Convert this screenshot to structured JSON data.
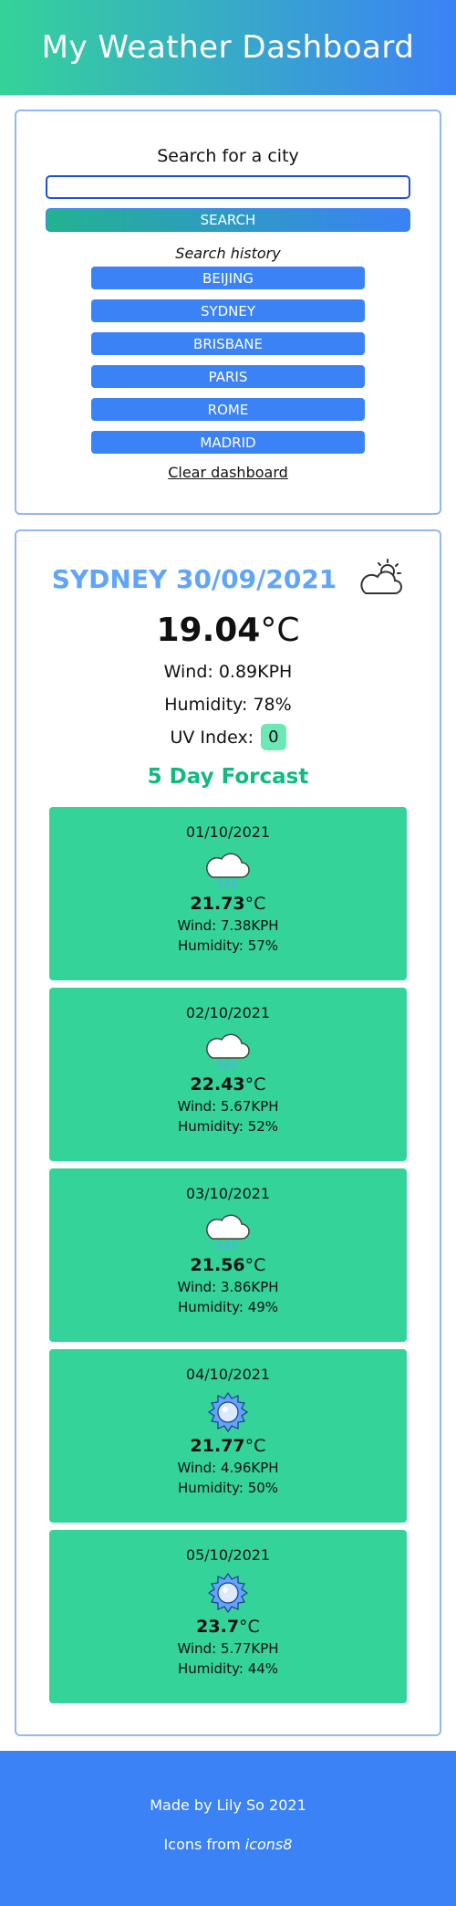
{
  "header": {
    "title": "My Weather Dashboard"
  },
  "search": {
    "title": "Search for a city",
    "input_value": "",
    "placeholder": "",
    "button_label": "SEARCH"
  },
  "history": {
    "title": "Search history",
    "items": [
      "BEIJING",
      "SYDNEY",
      "BRISBANE",
      "PARIS",
      "ROME",
      "MADRID"
    ],
    "clear_label": "Clear dashboard"
  },
  "current": {
    "title": "SYDNEY 30/09/2021",
    "icon": "partly-cloudy-icon",
    "temp_value": "19.04",
    "temp_unit": "°C",
    "wind": "Wind: 0.89KPH",
    "humidity": "Humidity: 78%",
    "uv_label": "UV Index:",
    "uv_value": "0"
  },
  "forecast": {
    "title": "5 Day Forcast",
    "days": [
      {
        "date": "01/10/2021",
        "icon": "rain-cloud-icon",
        "temp": "21.73",
        "unit": "°C",
        "wind": "Wind: 7.38KPH",
        "humidity": "Humidity: 57%"
      },
      {
        "date": "02/10/2021",
        "icon": "rain-cloud-icon",
        "temp": "22.43",
        "unit": "°C",
        "wind": "Wind: 5.67KPH",
        "humidity": "Humidity: 52%"
      },
      {
        "date": "03/10/2021",
        "icon": "rain-cloud-icon",
        "temp": "21.56",
        "unit": "°C",
        "wind": "Wind: 3.86KPH",
        "humidity": "Humidity: 49%"
      },
      {
        "date": "04/10/2021",
        "icon": "sun-icon",
        "temp": "21.77",
        "unit": "°C",
        "wind": "Wind: 4.96KPH",
        "humidity": "Humidity: 50%"
      },
      {
        "date": "05/10/2021",
        "icon": "sun-icon",
        "temp": "23.7",
        "unit": "°C",
        "wind": "Wind: 5.77KPH",
        "humidity": "Humidity: 44%"
      }
    ]
  },
  "footer": {
    "credit": "Made by Lily So 2021",
    "icons_prefix": "Icons from",
    "icons_source": "icons8"
  }
}
